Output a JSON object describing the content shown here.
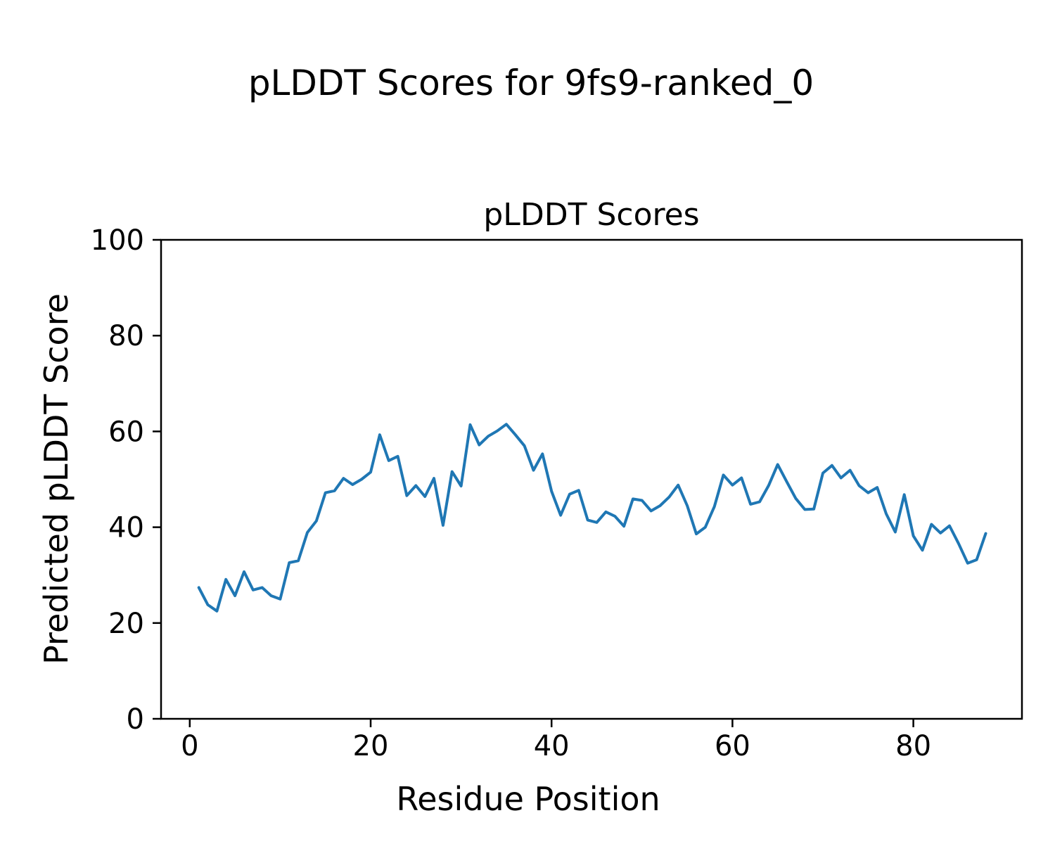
{
  "figure": {
    "suptitle": "pLDDT Scores for 9fs9-ranked_0",
    "background": "#ffffff"
  },
  "chart_data": {
    "type": "line",
    "suptitle": "pLDDT Scores for 9fs9-ranked_0",
    "title": "pLDDT Scores",
    "xlabel": "Residue Position",
    "ylabel": "Predicted pLDDT Score",
    "line_color": "#1f77b4",
    "axis_color": "#000000",
    "background": "#ffffff",
    "grid": false,
    "legend": null,
    "marker": "none",
    "xlim": [
      -3.35,
      92.35
    ],
    "ylim": [
      0,
      100
    ],
    "xticks": [
      0,
      20,
      40,
      60,
      80
    ],
    "yticks": [
      0,
      20,
      40,
      60,
      80,
      100
    ],
    "n_points": 88,
    "x": [
      1,
      2,
      3,
      4,
      5,
      6,
      7,
      8,
      9,
      10,
      11,
      12,
      13,
      14,
      15,
      16,
      17,
      18,
      19,
      20,
      21,
      22,
      23,
      24,
      25,
      26,
      27,
      28,
      29,
      30,
      31,
      32,
      33,
      34,
      35,
      36,
      37,
      38,
      39,
      40,
      41,
      42,
      43,
      44,
      45,
      46,
      47,
      48,
      49,
      50,
      51,
      52,
      53,
      54,
      55,
      56,
      57,
      58,
      59,
      60,
      61,
      62,
      63,
      64,
      65,
      66,
      67,
      68,
      69,
      70,
      71,
      72,
      73,
      74,
      75,
      76,
      77,
      78,
      79,
      80,
      81,
      82,
      83,
      84,
      85,
      86,
      87,
      88
    ],
    "values": [
      27.4,
      23.8,
      22.5,
      29.1,
      25.7,
      30.7,
      26.9,
      27.4,
      25.7,
      25.0,
      32.6,
      33.0,
      38.9,
      41.3,
      47.2,
      47.6,
      50.2,
      48.9,
      50.0,
      51.5,
      59.3,
      53.9,
      54.8,
      46.6,
      48.7,
      46.4,
      50.2,
      40.4,
      51.6,
      48.6,
      61.4,
      57.2,
      59.0,
      60.1,
      61.5,
      59.3,
      57.0,
      51.9,
      55.3,
      47.5,
      42.5,
      46.9,
      47.7,
      41.5,
      41.0,
      43.2,
      42.3,
      40.2,
      45.9,
      45.6,
      43.4,
      44.5,
      46.3,
      48.8,
      44.5,
      38.6,
      40.0,
      44.3,
      50.9,
      48.8,
      50.3,
      44.8,
      45.3,
      48.7,
      53.1,
      49.5,
      46.0,
      43.7,
      43.8,
      51.3,
      52.9,
      50.3,
      51.9,
      48.7,
      47.2,
      48.3,
      42.8,
      39.0,
      46.8,
      38.2,
      35.2,
      40.6,
      38.8,
      40.3,
      36.6,
      32.5,
      33.2,
      38.7
    ]
  }
}
